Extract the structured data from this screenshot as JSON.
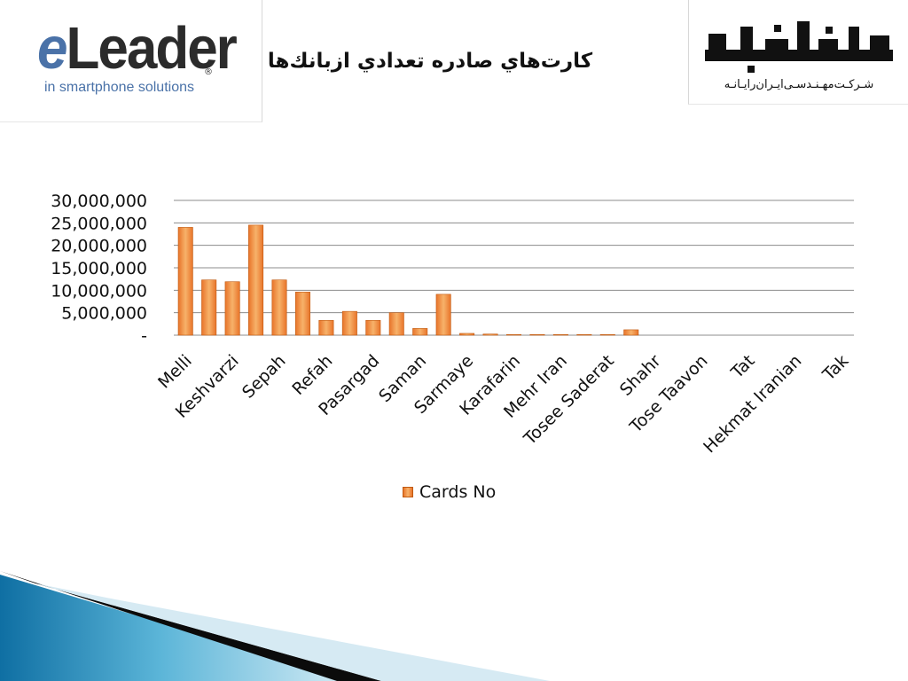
{
  "header": {
    "title": "کارت‌هاي صادره تعدادي ازبانك‌ها",
    "left_logo": {
      "letter": "e",
      "word": "Leader",
      "registered": "®",
      "tagline": "in smartphone solutions"
    },
    "right_logo": {
      "caption": "شـرکـت‌مهـنـدسـی‌ایـران‌رایـانـه"
    }
  },
  "colors": {
    "bar_light": "#f7b26a",
    "bar_dark": "#e8742a",
    "bar_edge": "#c05a10",
    "gridline": "#8c8c8c",
    "footer_blue": "#1a7fb3",
    "footer_dark": "#0b0b0b"
  },
  "chart_data": {
    "type": "bar",
    "title": "",
    "xlabel": "",
    "ylabel": "",
    "ylim": [
      0,
      30000000
    ],
    "yticks": [
      {
        "value": 0,
        "label": "-"
      },
      {
        "value": 5000000,
        "label": "5,000,000"
      },
      {
        "value": 10000000,
        "label": "10,000,000"
      },
      {
        "value": 15000000,
        "label": "15,000,000"
      },
      {
        "value": 20000000,
        "label": "20,000,000"
      },
      {
        "value": 25000000,
        "label": "25,000,000"
      },
      {
        "value": 30000000,
        "label": "30,000,000"
      }
    ],
    "categories": [
      "Melli",
      "",
      "Keshvarzi",
      "",
      "Sepah",
      "",
      "Refah",
      "",
      "Pasargad",
      "",
      "Saman",
      "",
      "Sarmaye",
      "",
      "Karafarin",
      "",
      "Mehr Iran",
      "",
      "Tosee Saderat",
      "",
      "Shahr",
      "",
      "Tose Taavon",
      "",
      "Tat",
      "",
      "Hekmat Iranian",
      "",
      "Tak"
    ],
    "series": [
      {
        "name": "Cards No",
        "values": [
          24000000,
          12300000,
          11900000,
          24500000,
          12300000,
          9600000,
          3300000,
          5300000,
          3300000,
          5000000,
          1500000,
          9100000,
          400000,
          250000,
          150000,
          150000,
          150000,
          150000,
          150000,
          1200000,
          0,
          0,
          0,
          0,
          0,
          0,
          0,
          0,
          0
        ]
      }
    ],
    "grid": true,
    "legend_position": "bottom"
  }
}
